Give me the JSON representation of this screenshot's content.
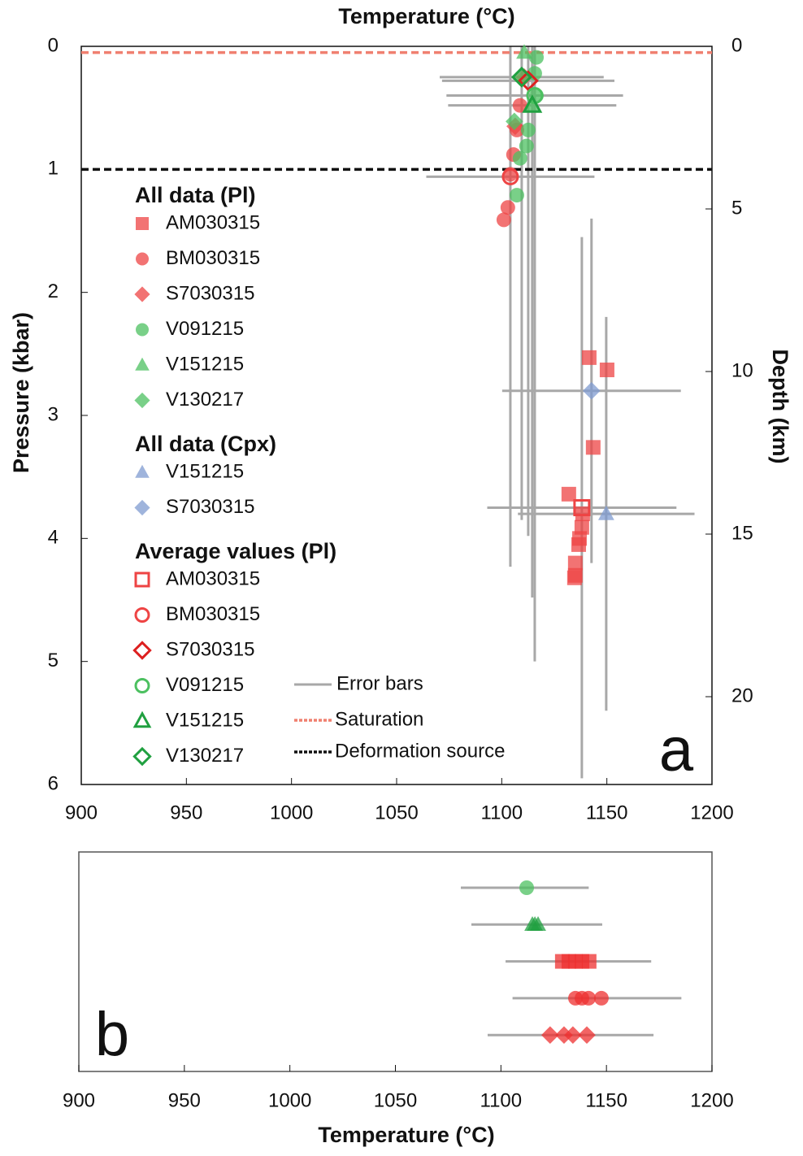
{
  "chart_data": [
    {
      "type": "scatter",
      "title": "Temperature (°C)",
      "ylabel": "Pressure (kbar)",
      "y2label": "Depth (km)",
      "panel_label": "a",
      "xlim": [
        900,
        1200
      ],
      "xticks": [
        900,
        950,
        1000,
        1050,
        1100,
        1150,
        1200
      ],
      "ylim": [
        0,
        6
      ],
      "yticks": [
        0,
        1,
        2,
        3,
        4,
        5,
        6
      ],
      "y_inverted": true,
      "y2lim": [
        0,
        22.7
      ],
      "y2ticks": [
        5,
        10,
        15,
        20,
        0
      ],
      "error_bar_label": "Error bars",
      "error_bar_color": "#a8a8a8",
      "lines": [
        {
          "name": "Saturation",
          "value": 0.05,
          "color": "#f08070"
        },
        {
          "name": "Deformation source",
          "value": 1,
          "color": "#111111"
        }
      ],
      "groups": [
        {
          "title": "All data (Pl)",
          "series": [
            {
              "name": "AM030315",
              "marker": "square",
              "filled": true,
              "color": "#ee4444",
              "x": [
                1141.6,
                1150.1,
                1143.5,
                1131.9,
                1138.5,
                1138.1,
                1137,
                1136.6,
                1135,
                1135,
                1134.6
              ],
              "values": [
                2.53,
                2.63,
                3.26,
                3.64,
                3.8,
                3.91,
                4.0,
                4.05,
                4.2,
                4.3,
                4.32
              ]
            },
            {
              "name": "BM030315",
              "marker": "circle",
              "filled": true,
              "color": "#ee4444",
              "x": [
                1101,
                1102.9,
                1104.1,
                1105.6,
                1107.2,
                1108.7
              ],
              "values": [
                1.41,
                1.31,
                1.04,
                0.88,
                0.68,
                0.48
              ]
            },
            {
              "name": "S7030315",
              "marker": "diamond",
              "filled": true,
              "color": "#ee4444",
              "x": [
                1106.4,
                1110.7
              ],
              "values": [
                0.65,
                0.25
              ]
            },
            {
              "name": "V091215",
              "marker": "circle",
              "filled": true,
              "color": "#4cc060",
              "x": [
                1116.5,
                1115.7,
                1116.5,
                1112.6,
                1111.8,
                1108.7,
                1107.2
              ],
              "values": [
                0.09,
                0.22,
                0.4,
                0.68,
                0.81,
                0.91,
                1.21
              ]
            },
            {
              "name": "V151215",
              "marker": "triangle",
              "filled": true,
              "color": "#4cc060",
              "x": [
                1110.7,
                1114.1
              ],
              "values": [
                0.05,
                0.48
              ]
            },
            {
              "name": "V130217",
              "marker": "diamond",
              "filled": true,
              "color": "#4cc060",
              "x": [
                1106,
                1108.7
              ],
              "values": [
                0.61,
                0.25
              ]
            }
          ]
        },
        {
          "title": "All data (Cpx)",
          "series": [
            {
              "name": "V151215",
              "marker": "triangle",
              "filled": true,
              "color": "#7f9bd0",
              "x": [
                1149.7
              ],
              "values": [
                3.8
              ],
              "xerr": [
                42
              ],
              "yerr": [
                1.6
              ]
            },
            {
              "name": "S7030315",
              "marker": "diamond",
              "filled": true,
              "color": "#7f9bd0",
              "x": [
                1142.7
              ],
              "values": [
                2.8
              ],
              "xerr": [
                42.5
              ],
              "yerr": [
                1.4
              ]
            }
          ]
        },
        {
          "title": "Average values (Pl)",
          "series": [
            {
              "name": "AM030315",
              "marker": "square",
              "filled": false,
              "color": "#ee4444",
              "x": [
                1138.1
              ],
              "values": [
                3.75
              ],
              "xerr": [
                45
              ],
              "yerr": [
                2.2
              ]
            },
            {
              "name": "BM030315",
              "marker": "circle",
              "filled": false,
              "color": "#ee4444",
              "x": [
                1104.1
              ],
              "values": [
                1.06
              ],
              "xerr": [
                40
              ],
              "yerr": [
                3.17
              ]
            },
            {
              "name": "S7030315",
              "marker": "diamond",
              "filled": false,
              "color": "#dd2020",
              "x": [
                1112.6
              ],
              "values": [
                0.28
              ],
              "xerr": [
                41
              ],
              "yerr": [
                3.7
              ]
            },
            {
              "name": "V091215",
              "marker": "circle",
              "filled": false,
              "color": "#4cc060",
              "x": [
                1115.7
              ],
              "values": [
                0.4
              ],
              "xerr": [
                42
              ],
              "yerr": [
                4.6
              ]
            },
            {
              "name": "V151215",
              "marker": "triangle",
              "filled": false,
              "color": "#20a040",
              "x": [
                1114.5
              ],
              "values": [
                0.48
              ],
              "xerr": [
                40
              ],
              "yerr": [
                4.0
              ]
            },
            {
              "name": "V130217",
              "marker": "diamond",
              "filled": false,
              "color": "#20a040",
              "x": [
                1109.5
              ],
              "values": [
                0.25
              ],
              "xerr": [
                39
              ],
              "yerr": [
                3.6
              ]
            }
          ]
        }
      ]
    },
    {
      "type": "strip",
      "xlabel": "Temperature (°C)",
      "panel_label": "b",
      "xlim": [
        900,
        1200
      ],
      "xticks": [
        900,
        950,
        1000,
        1050,
        1100,
        1150,
        1200
      ],
      "rows": [
        {
          "marker": "circle",
          "color": "#4cc060",
          "values": [
            1112.2
          ],
          "errbar_center": 1111.3,
          "errbar_error": 30.3
        },
        {
          "marker": "triangle",
          "color": "#20a040",
          "values": [
            1114.9,
            1116.1,
            1117.6
          ],
          "errbar_center": 1117,
          "errbar_error": 31
        },
        {
          "marker": "square",
          "color": "#ee3030",
          "values": [
            1129.1,
            1132.2,
            1135.3,
            1138.4,
            1141.8
          ],
          "errbar_center": 1136.7,
          "errbar_error": 34.5
        },
        {
          "marker": "circle",
          "color": "#ee3030",
          "values": [
            1135.3,
            1138.4,
            1141.5,
            1147.6
          ],
          "errbar_center": 1145.5,
          "errbar_error": 40
        },
        {
          "marker": "diamond",
          "color": "#ee3030",
          "values": [
            1123.3,
            1129.9,
            1134.1,
            1140.7
          ],
          "errbar_center": 1133,
          "errbar_error": 39.3
        }
      ]
    }
  ]
}
